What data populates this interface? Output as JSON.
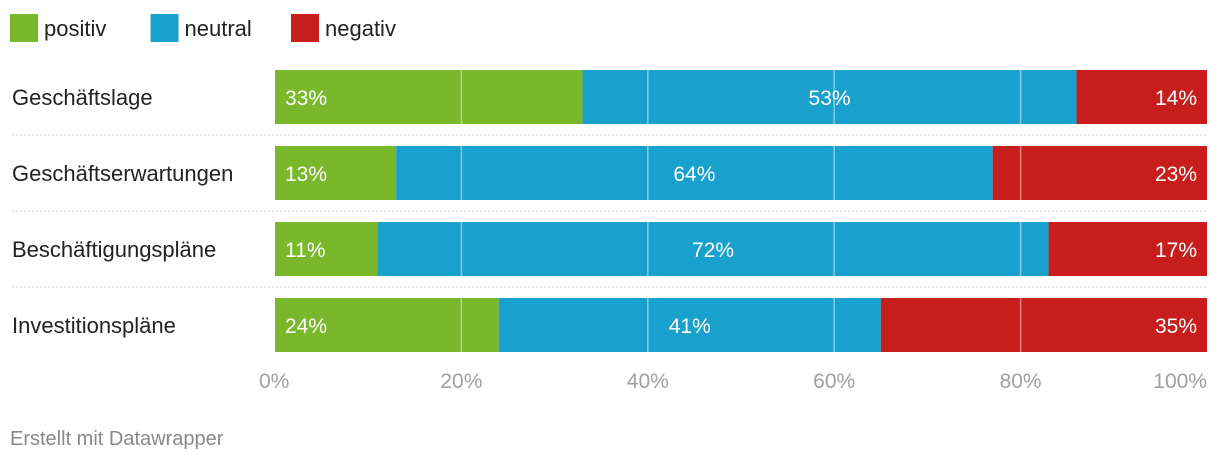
{
  "chart_data": {
    "type": "bar",
    "orientation": "horizontal",
    "stacked": true,
    "categories": [
      "Geschäftslage",
      "Geschäftserwartungen",
      "Beschäftigungspläne",
      "Investitionspläne"
    ],
    "series": [
      {
        "name": "positiv",
        "color": "#78b82a",
        "values": [
          33,
          13,
          11,
          24
        ]
      },
      {
        "name": "neutral",
        "color": "#18a1cd",
        "values": [
          53,
          64,
          72,
          41
        ]
      },
      {
        "name": "negativ",
        "color": "#c71e1d",
        "values": [
          14,
          23,
          17,
          35
        ]
      }
    ],
    "value_labels": [
      [
        "33%",
        "13%",
        "11%",
        "24%"
      ],
      [
        "53%",
        "64%",
        "72%",
        "41%"
      ],
      [
        "14%",
        "23%",
        "17%",
        "35%"
      ]
    ],
    "xlim": [
      0,
      100
    ],
    "xticks": [
      0,
      20,
      40,
      60,
      80,
      100
    ],
    "xtick_labels": [
      "0%",
      "20%",
      "40%",
      "60%",
      "80%",
      "100%"
    ],
    "grid": true,
    "legend_position": "top-left"
  },
  "footer": {
    "credit": "Erstellt mit Datawrapper"
  }
}
